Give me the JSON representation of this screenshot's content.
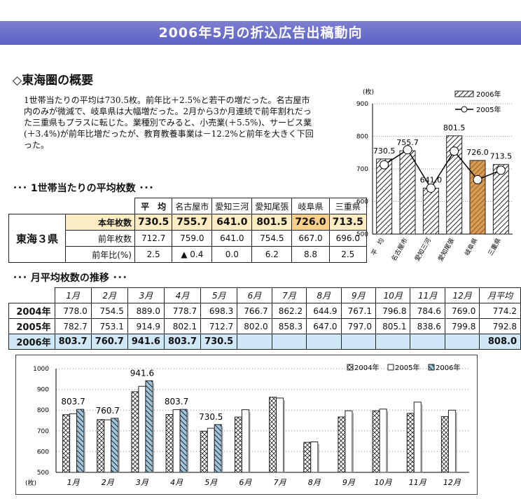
{
  "title": "2006年5月の折込広告出稿動向",
  "section1": "◇東海圏の概要",
  "summary": "1世帯当たりの平均は730.5枚。前年比＋2.5%と若干の増だった。名古屋市内のみが微減で、岐阜県は大幅増だった。2月から3か月連続で前年割れだった三重県もプラスに転じた。業種別でみると、小売業(＋5.5%)、サービス業(＋3.4%)が前年比増だったが、教育教養事業は－12.2%と前年を大きく下回った。",
  "table1": {
    "heading": "･･･ 1世帯当たりの平均枚数 ･･･",
    "region": "東海３県",
    "cols": [
      "平　均",
      "名古屋市",
      "愛知三河",
      "愛知尾張",
      "岐阜県",
      "三重県"
    ],
    "rows": [
      {
        "label": "本年枚数",
        "values": [
          "730.5",
          "755.7",
          "641.0",
          "801.5",
          "726.0",
          "713.5"
        ]
      },
      {
        "label": "前年枚数",
        "values": [
          "712.7",
          "759.0",
          "641.0",
          "754.5",
          "667.0",
          "696.0"
        ]
      },
      {
        "label": "前年比(%)",
        "values": [
          "2.5",
          "▲ 0.4",
          "0.0",
          "6.2",
          "8.8",
          "2.5"
        ]
      }
    ]
  },
  "table2": {
    "heading": "･･･ 月平均枚数の推移 ･･･",
    "cols": [
      "1月",
      "2月",
      "3月",
      "4月",
      "5月",
      "6月",
      "7月",
      "8月",
      "9月",
      "10月",
      "11月",
      "12月",
      "月平均"
    ],
    "rows": [
      {
        "label": "2004年",
        "values": [
          "778.0",
          "754.5",
          "889.0",
          "778.7",
          "698.3",
          "766.7",
          "862.2",
          "644.9",
          "767.1",
          "796.8",
          "784.6",
          "769.0",
          "774.2"
        ]
      },
      {
        "label": "2005年",
        "values": [
          "782.7",
          "753.1",
          "914.9",
          "802.1",
          "712.7",
          "802.0",
          "858.3",
          "647.0",
          "797.0",
          "805.1",
          "838.6",
          "799.8",
          "792.8"
        ]
      },
      {
        "label": "2006年",
        "values": [
          "803.7",
          "760.7",
          "941.6",
          "803.7",
          "730.5",
          "",
          "",
          "",
          "",
          "",
          "",
          "",
          "808.0"
        ]
      }
    ]
  },
  "colors": {
    "title_bar": "#6266c6",
    "highlight": "#fbecc4",
    "gifu": "#c98a3e",
    "row2006": "#cfe7f7"
  },
  "chart_data": [
    {
      "type": "bar",
      "unit": "(枚)",
      "categories": [
        "平　均",
        "名古屋市",
        "愛知三河",
        "愛知尾張",
        "岐阜県",
        "三重県"
      ],
      "series": [
        {
          "name": "2006年",
          "values": [
            730.5,
            755.7,
            641.0,
            801.5,
            726.0,
            713.5
          ]
        },
        {
          "name": "2005年",
          "values": [
            712.7,
            759.0,
            641.0,
            754.5,
            667.0,
            696.0
          ]
        }
      ],
      "ylim": [
        500,
        900
      ],
      "yticks": [
        500,
        600,
        700,
        800,
        900
      ],
      "legend": "top-right"
    },
    {
      "type": "bar",
      "unit": "(枚)",
      "categories": [
        "1月",
        "2月",
        "3月",
        "4月",
        "5月",
        "6月",
        "7月",
        "8月",
        "9月",
        "10月",
        "11月",
        "12月"
      ],
      "series": [
        {
          "name": "2004年",
          "values": [
            778.0,
            754.5,
            889.0,
            778.7,
            698.3,
            766.7,
            862.2,
            644.9,
            767.1,
            796.8,
            784.6,
            769.0
          ]
        },
        {
          "name": "2005年",
          "values": [
            782.7,
            753.1,
            914.9,
            802.1,
            712.7,
            802.0,
            858.3,
            647.0,
            797.0,
            805.1,
            838.6,
            799.8
          ]
        },
        {
          "name": "2006年",
          "values": [
            803.7,
            760.7,
            941.6,
            803.7,
            730.5,
            null,
            null,
            null,
            null,
            null,
            null,
            null
          ]
        }
      ],
      "ylim": [
        500,
        1000
      ],
      "yticks": [
        500,
        600,
        700,
        800,
        900,
        1000
      ],
      "legend": "top-right"
    }
  ]
}
